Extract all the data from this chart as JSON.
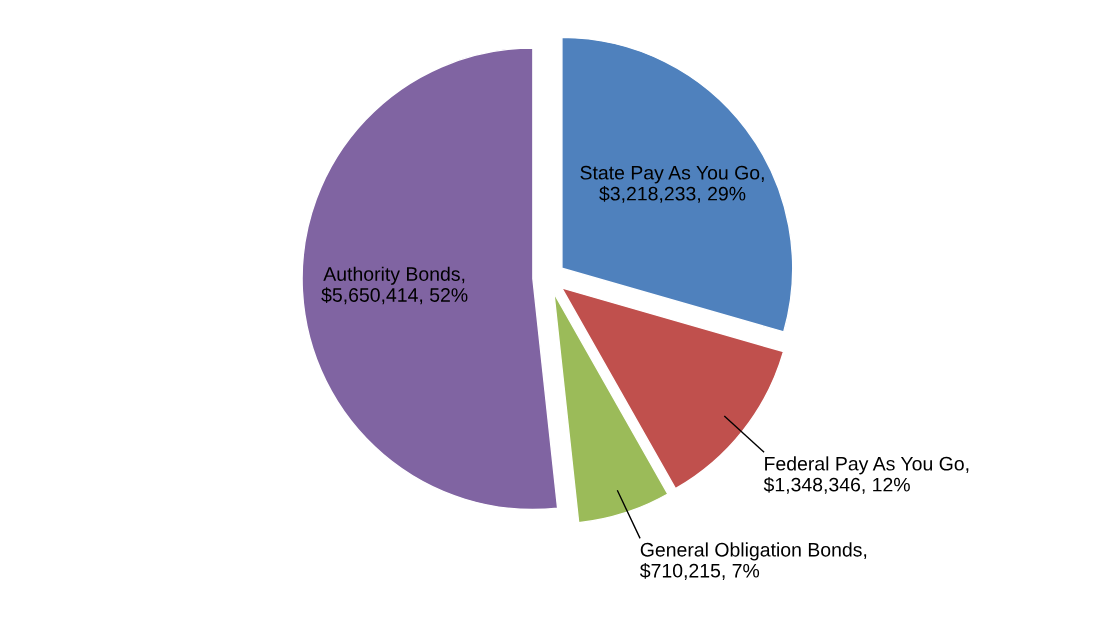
{
  "chart_data": {
    "type": "pie",
    "categories": [
      "State Pay As You Go",
      "Federal Pay As You Go",
      "General Obligation Bonds",
      "Authority Bonds"
    ],
    "values": [
      3218233,
      1348346,
      710215,
      5650414
    ],
    "colors": [
      "#4f81bd",
      "#c0504d",
      "#9bbb59",
      "#8064a2"
    ],
    "value_labels": [
      ",\n$3,218,233, 29%",
      ",\n$1,348,346, 12%",
      ",\n$710,215, 7%",
      ",\n$5,650,414, 52%"
    ],
    "legend": false
  }
}
